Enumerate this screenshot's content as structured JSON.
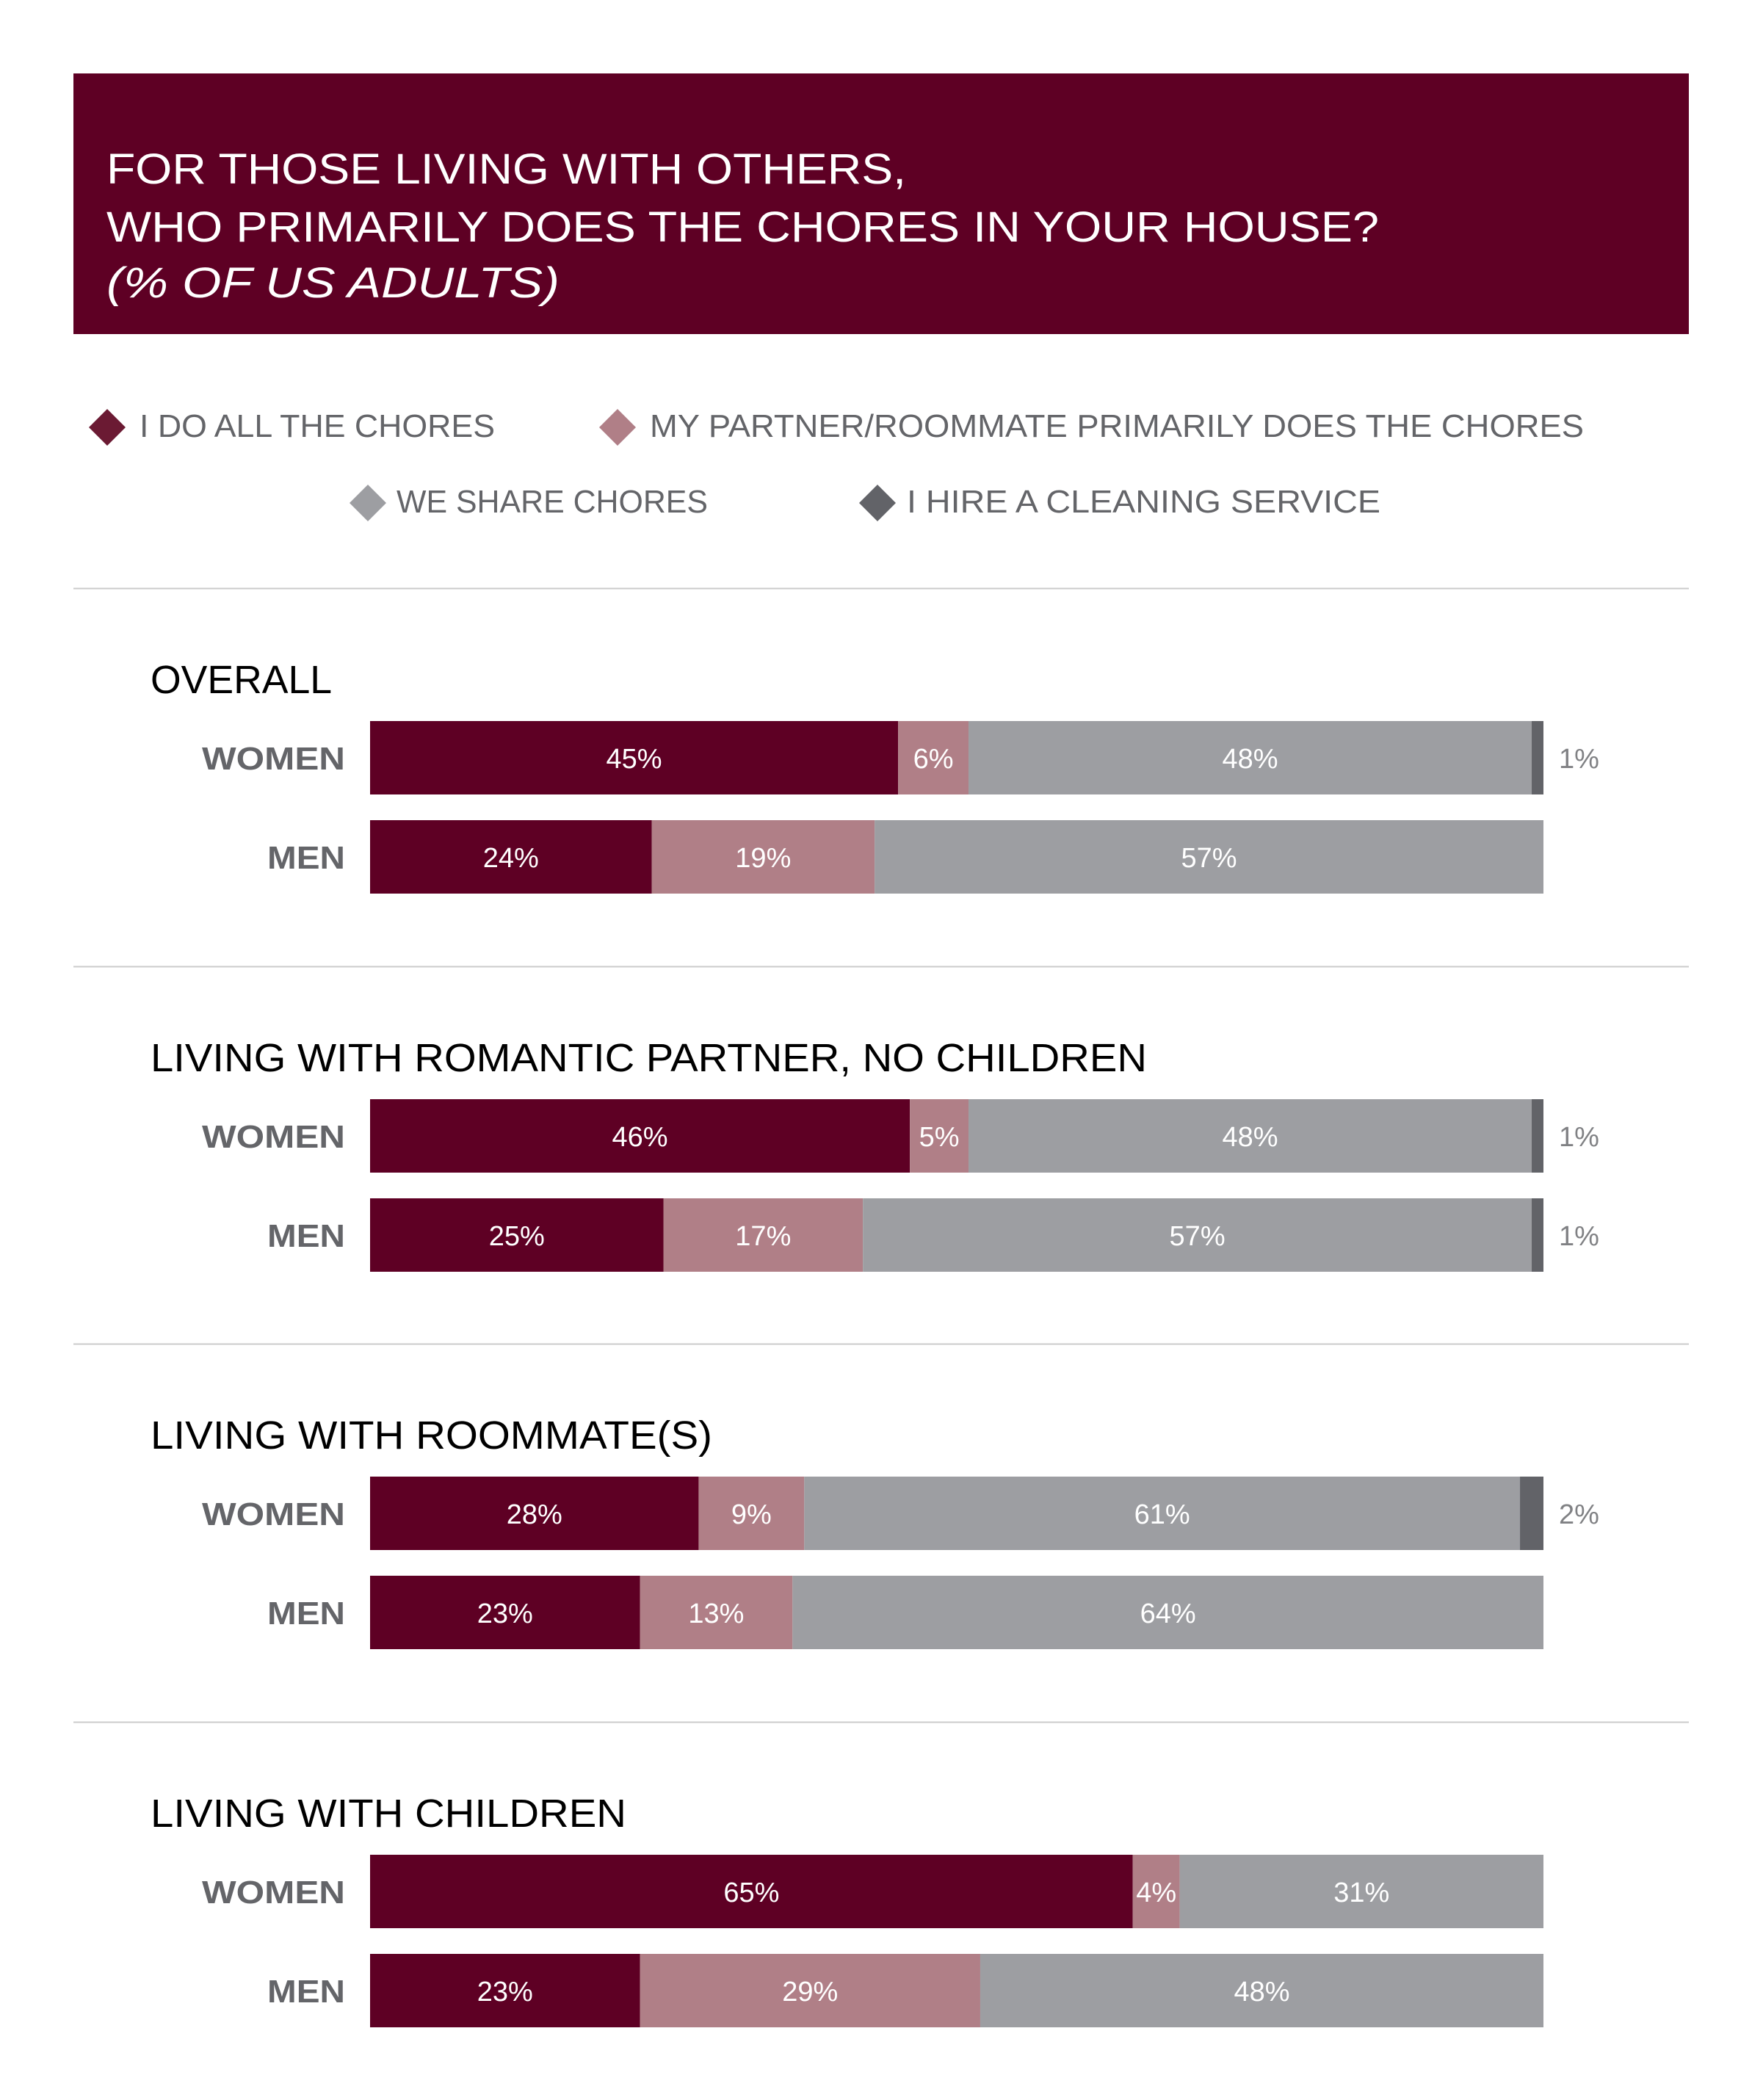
{
  "header": {
    "line1": "FOR THOSE LIVING WITH OTHERS,",
    "line2": "WHO PRIMARILY DOES THE CHORES IN YOUR HOUSE?",
    "line3": "(% OF US ADULTS)",
    "background": "#5E0024"
  },
  "legend": [
    {
      "label": "I DO ALL THE CHORES",
      "color": "#6B1A33",
      "icon": "diamond-icon"
    },
    {
      "label": "MY PARTNER/ROOMMATE PRIMARILY DOES THE CHORES",
      "color": "#B07F87",
      "icon": "diamond-icon"
    },
    {
      "label": "WE SHARE CHORES",
      "color": "#9D9EA2",
      "icon": "diamond-icon"
    },
    {
      "label": "I HIRE A CLEANING SERVICE",
      "color": "#626368",
      "icon": "diamond-icon"
    }
  ],
  "chart_data": {
    "type": "bar",
    "orientation": "horizontal",
    "stacked": true,
    "title": "FOR THOSE LIVING WITH OTHERS, WHO PRIMARILY DOES THE CHORES IN YOUR HOUSE? (% OF US ADULTS)",
    "xlim": [
      0,
      100
    ],
    "unit": "%",
    "series": [
      {
        "name": "I DO ALL THE CHORES",
        "color": "#5E0024"
      },
      {
        "name": "MY PARTNER/ROOMMATE PRIMARILY DOES THE CHORES",
        "color": "#B07F87"
      },
      {
        "name": "WE SHARE CHORES",
        "color": "#9D9EA2"
      },
      {
        "name": "I HIRE A CLEANING SERVICE",
        "color": "#626368"
      }
    ],
    "groups": [
      {
        "title": "OVERALL",
        "rows": [
          {
            "label": "WOMEN",
            "values": [
              45,
              6,
              48,
              1
            ],
            "labels": [
              "45%",
              "6%",
              "48%",
              "1%"
            ]
          },
          {
            "label": "MEN",
            "values": [
              24,
              19,
              57,
              0
            ],
            "labels": [
              "24%",
              "19%",
              "57%",
              ""
            ]
          }
        ]
      },
      {
        "title": "LIVING WITH ROMANTIC PARTNER, NO CHILDREN",
        "rows": [
          {
            "label": "WOMEN",
            "values": [
              46,
              5,
              48,
              1
            ],
            "labels": [
              "46%",
              "5%",
              "48%",
              "1%"
            ]
          },
          {
            "label": "MEN",
            "values": [
              25,
              17,
              57,
              1
            ],
            "labels": [
              "25%",
              "17%",
              "57%",
              "1%"
            ]
          }
        ]
      },
      {
        "title": "LIVING WITH ROOMMATE(S)",
        "rows": [
          {
            "label": "WOMEN",
            "values": [
              28,
              9,
              61,
              2
            ],
            "labels": [
              "28%",
              "9%",
              "61%",
              "2%"
            ]
          },
          {
            "label": "MEN",
            "values": [
              23,
              13,
              64,
              0
            ],
            "labels": [
              "23%",
              "13%",
              "64%",
              ""
            ]
          }
        ]
      },
      {
        "title": "LIVING WITH CHILDREN",
        "rows": [
          {
            "label": "WOMEN",
            "values": [
              65,
              4,
              31,
              0
            ],
            "labels": [
              "65%",
              "4%",
              "31%",
              ""
            ]
          },
          {
            "label": "MEN",
            "values": [
              23,
              29,
              48,
              0
            ],
            "labels": [
              "23%",
              "29%",
              "48%",
              ""
            ]
          }
        ]
      }
    ]
  }
}
